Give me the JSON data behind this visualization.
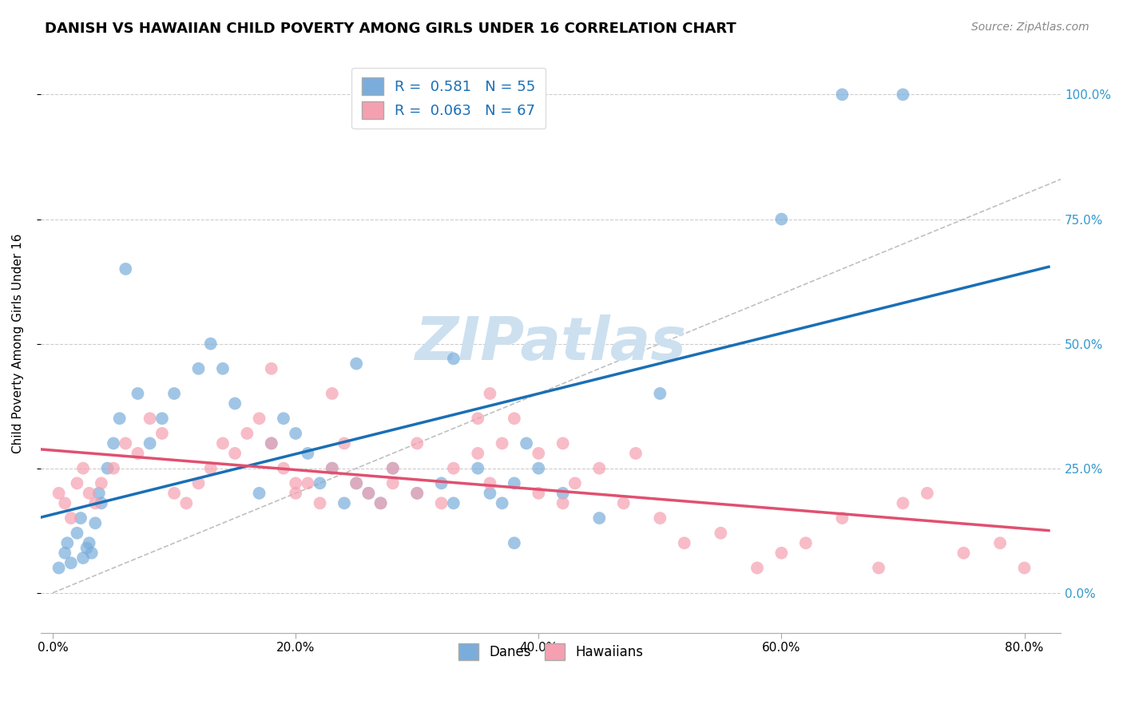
{
  "title": "DANISH VS HAWAIIAN CHILD POVERTY AMONG GIRLS UNDER 16 CORRELATION CHART",
  "source": "Source: ZipAtlas.com",
  "xlabel_ticks": [
    "0.0%",
    "20.0%",
    "40.0%",
    "60.0%",
    "80.0%"
  ],
  "ylabel_ticks": [
    "0.0%",
    "25.0%",
    "50.0%",
    "75.0%",
    "100.0%"
  ],
  "xlabel_values": [
    0,
    20,
    40,
    60,
    80
  ],
  "ylabel_values": [
    0,
    25,
    50,
    75,
    100
  ],
  "xlim": [
    -1,
    83
  ],
  "ylim": [
    -8,
    108
  ],
  "ylabel": "Child Poverty Among Girls Under 16",
  "danes_R": 0.581,
  "danes_N": 55,
  "hawaiians_R": 0.063,
  "hawaiians_N": 67,
  "danes_color": "#7aaddb",
  "hawaiians_color": "#f4a0b0",
  "danes_line_color": "#1a6fb5",
  "hawaiians_line_color": "#e05070",
  "diag_line_color": "#c0c0c0",
  "danes_x": [
    0.5,
    1.0,
    1.2,
    1.5,
    2.0,
    2.3,
    2.5,
    2.8,
    3.0,
    3.2,
    3.5,
    3.8,
    4.0,
    4.5,
    5.0,
    5.5,
    6.0,
    7.0,
    8.0,
    9.0,
    10.0,
    12.0,
    13.0,
    14.0,
    15.0,
    17.0,
    18.0,
    19.0,
    20.0,
    21.0,
    22.0,
    23.0,
    24.0,
    25.0,
    26.0,
    27.0,
    28.0,
    30.0,
    32.0,
    33.0,
    35.0,
    36.0,
    37.0,
    38.0,
    39.0,
    40.0,
    42.0,
    45.0,
    50.0,
    60.0,
    65.0,
    70.0,
    33.0,
    25.0,
    38.0
  ],
  "danes_y": [
    5.0,
    8.0,
    10.0,
    6.0,
    12.0,
    15.0,
    7.0,
    9.0,
    10.0,
    8.0,
    14.0,
    20.0,
    18.0,
    25.0,
    30.0,
    35.0,
    65.0,
    40.0,
    30.0,
    35.0,
    40.0,
    45.0,
    50.0,
    45.0,
    38.0,
    20.0,
    30.0,
    35.0,
    32.0,
    28.0,
    22.0,
    25.0,
    18.0,
    22.0,
    20.0,
    18.0,
    25.0,
    20.0,
    22.0,
    18.0,
    25.0,
    20.0,
    18.0,
    22.0,
    30.0,
    25.0,
    20.0,
    15.0,
    40.0,
    75.0,
    100.0,
    100.0,
    47.0,
    46.0,
    10.0
  ],
  "hawaiians_x": [
    0.5,
    1.0,
    1.5,
    2.0,
    2.5,
    3.0,
    3.5,
    4.0,
    5.0,
    6.0,
    7.0,
    8.0,
    9.0,
    10.0,
    11.0,
    12.0,
    13.0,
    14.0,
    15.0,
    16.0,
    17.0,
    18.0,
    19.0,
    20.0,
    21.0,
    22.0,
    23.0,
    24.0,
    25.0,
    26.0,
    27.0,
    28.0,
    30.0,
    32.0,
    33.0,
    35.0,
    36.0,
    37.0,
    38.0,
    40.0,
    42.0,
    43.0,
    45.0,
    47.0,
    50.0,
    52.0,
    55.0,
    58.0,
    60.0,
    62.0,
    65.0,
    68.0,
    70.0,
    72.0,
    75.0,
    78.0,
    80.0,
    30.0,
    35.0,
    48.0,
    18.0,
    23.0,
    36.0,
    40.0,
    42.0,
    20.0,
    28.0
  ],
  "hawaiians_y": [
    20.0,
    18.0,
    15.0,
    22.0,
    25.0,
    20.0,
    18.0,
    22.0,
    25.0,
    30.0,
    28.0,
    35.0,
    32.0,
    20.0,
    18.0,
    22.0,
    25.0,
    30.0,
    28.0,
    32.0,
    35.0,
    30.0,
    25.0,
    20.0,
    22.0,
    18.0,
    25.0,
    30.0,
    22.0,
    20.0,
    18.0,
    22.0,
    20.0,
    18.0,
    25.0,
    28.0,
    22.0,
    30.0,
    35.0,
    20.0,
    18.0,
    22.0,
    25.0,
    18.0,
    15.0,
    10.0,
    12.0,
    5.0,
    8.0,
    10.0,
    15.0,
    5.0,
    18.0,
    20.0,
    8.0,
    10.0,
    5.0,
    30.0,
    35.0,
    28.0,
    45.0,
    40.0,
    40.0,
    28.0,
    30.0,
    22.0,
    25.0
  ],
  "watermark": "ZIPatlas",
  "watermark_color": "#cce0f0",
  "legend_blue_label": "R =  0.581   N = 55",
  "legend_pink_label": "R =  0.063   N = 67",
  "legend_label_danes": "Danes",
  "legend_label_hawaiians": "Hawaiians",
  "title_fontsize": 13,
  "axis_label_fontsize": 11,
  "tick_fontsize": 11,
  "source_fontsize": 10
}
